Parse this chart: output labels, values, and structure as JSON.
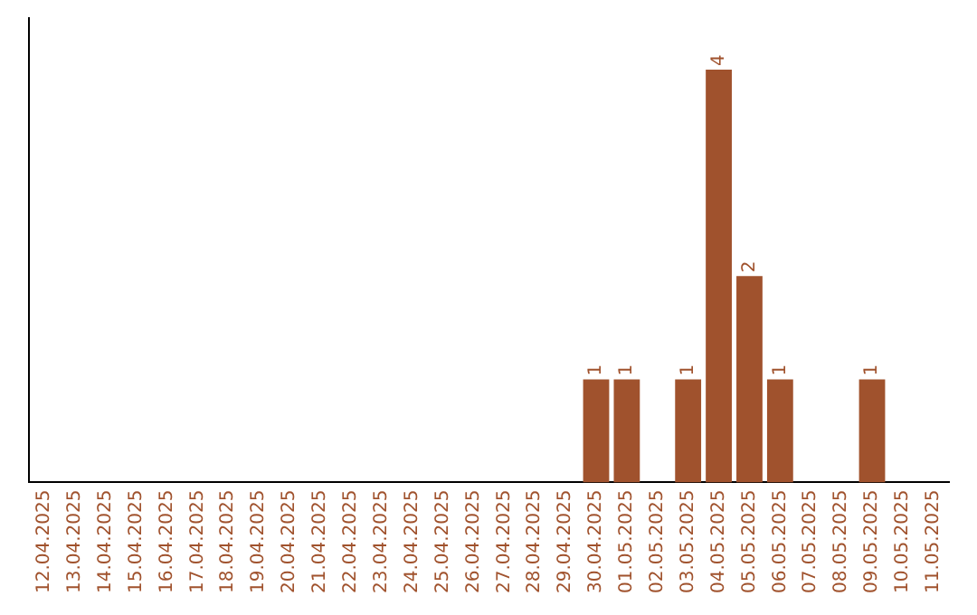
{
  "chart_data": {
    "type": "bar",
    "categories": [
      "12.04.2025",
      "13.04.2025",
      "14.04.2025",
      "15.04.2025",
      "16.04.2025",
      "17.04.2025",
      "18.04.2025",
      "19.04.2025",
      "20.04.2025",
      "21.04.2025",
      "22.04.2025",
      "23.04.2025",
      "24.04.2025",
      "25.04.2025",
      "26.04.2025",
      "27.04.2025",
      "28.04.2025",
      "29.04.2025",
      "30.04.2025",
      "01.05.2025",
      "02.05.2025",
      "03.05.2025",
      "04.05.2025",
      "05.05.2025",
      "06.05.2025",
      "07.05.2025",
      "08.05.2025",
      "09.05.2025",
      "10.05.2025",
      "11.05.2025"
    ],
    "values": [
      null,
      null,
      null,
      null,
      null,
      null,
      null,
      null,
      null,
      null,
      null,
      null,
      null,
      null,
      null,
      null,
      null,
      null,
      1,
      1,
      null,
      1,
      4,
      2,
      1,
      null,
      null,
      1,
      null,
      null
    ],
    "value_labels": [
      null,
      null,
      null,
      null,
      null,
      null,
      null,
      null,
      null,
      null,
      null,
      null,
      null,
      null,
      null,
      null,
      null,
      null,
      "1",
      "1",
      null,
      "1",
      "4",
      "2",
      "1",
      null,
      null,
      "1",
      null,
      null
    ],
    "color": "#a0522d",
    "grid": false,
    "legend": false
  }
}
